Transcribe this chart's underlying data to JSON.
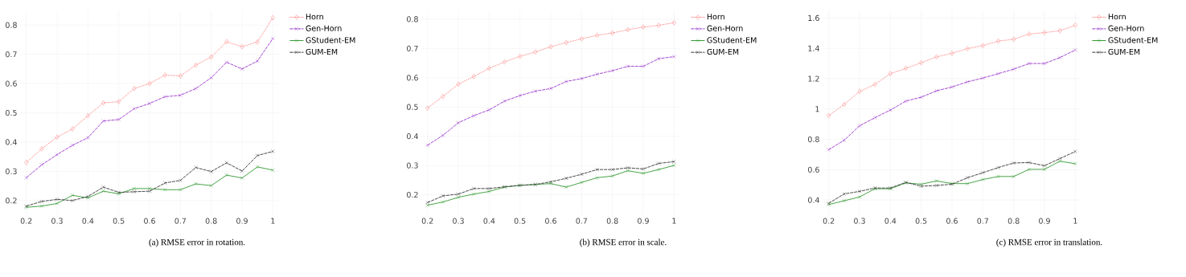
{
  "chart_data": [
    {
      "type": "line",
      "title": "(a) RMSE error in rotation.",
      "x": [
        0.2,
        0.25,
        0.3,
        0.35,
        0.4,
        0.45,
        0.5,
        0.55,
        0.6,
        0.65,
        0.7,
        0.75,
        0.8,
        0.85,
        0.9,
        0.95,
        1
      ],
      "xlim": [
        0.18,
        1.02
      ],
      "ylim": [
        0.15,
        0.85
      ],
      "xticks": [
        0.2,
        0.3,
        0.4,
        0.5,
        0.6,
        0.7,
        0.8,
        0.9,
        1
      ],
      "yticks": [
        0.2,
        0.3,
        0.4,
        0.5,
        0.6,
        0.7,
        0.8
      ],
      "grid": true,
      "legend": "top right",
      "series": [
        {
          "name": "Horn",
          "color": "#ff6666",
          "marker": "diamond",
          "line_style": "dotted",
          "values": [
            0.33,
            0.377,
            0.417,
            0.445,
            0.49,
            0.534,
            0.538,
            0.583,
            0.6,
            0.629,
            0.626,
            0.663,
            0.691,
            0.743,
            0.726,
            0.742,
            0.825
          ]
        },
        {
          "name": "Gen-Horn",
          "color": "#9933cc",
          "marker": "cross",
          "line_style": "dashed",
          "values": [
            0.278,
            0.322,
            0.357,
            0.389,
            0.415,
            0.472,
            0.477,
            0.514,
            0.532,
            0.555,
            0.56,
            0.583,
            0.62,
            0.673,
            0.65,
            0.677,
            0.754
          ]
        },
        {
          "name": "GStudent-EM",
          "color": "#339933",
          "marker": "cross",
          "line_style": "solid",
          "values": [
            0.177,
            0.181,
            0.19,
            0.218,
            0.209,
            0.232,
            0.223,
            0.241,
            0.241,
            0.237,
            0.237,
            0.257,
            0.251,
            0.287,
            0.277,
            0.315,
            0.304
          ]
        },
        {
          "name": "GUM-EM",
          "color": "#333333",
          "marker": "cross",
          "line_style": "dashed",
          "values": [
            0.181,
            0.197,
            0.204,
            0.2,
            0.214,
            0.246,
            0.228,
            0.23,
            0.232,
            0.26,
            0.269,
            0.313,
            0.299,
            0.329,
            0.301,
            0.354,
            0.368
          ]
        }
      ]
    },
    {
      "type": "line",
      "title": "(b) RMSE error in scale.",
      "x": [
        0.2,
        0.25,
        0.3,
        0.35,
        0.4,
        0.45,
        0.5,
        0.55,
        0.6,
        0.65,
        0.7,
        0.75,
        0.8,
        0.85,
        0.9,
        0.95,
        1
      ],
      "xlim": [
        0.18,
        1.02
      ],
      "ylim": [
        0.13,
        0.83
      ],
      "xticks": [
        0.2,
        0.3,
        0.4,
        0.5,
        0.6,
        0.7,
        0.8,
        0.9,
        1
      ],
      "yticks": [
        0.2,
        0.3,
        0.4,
        0.5,
        0.6,
        0.7,
        0.8
      ],
      "grid": true,
      "legend": "top right",
      "series": [
        {
          "name": "Horn",
          "color": "#ff6666",
          "marker": "diamond",
          "line_style": "dotted",
          "values": [
            0.496,
            0.536,
            0.578,
            0.604,
            0.632,
            0.654,
            0.673,
            0.688,
            0.706,
            0.72,
            0.733,
            0.745,
            0.753,
            0.764,
            0.773,
            0.779,
            0.788
          ]
        },
        {
          "name": "Gen-Horn",
          "color": "#9933cc",
          "marker": "cross",
          "line_style": "dashed",
          "values": [
            0.369,
            0.403,
            0.446,
            0.47,
            0.49,
            0.52,
            0.539,
            0.554,
            0.563,
            0.587,
            0.597,
            0.612,
            0.624,
            0.639,
            0.639,
            0.665,
            0.672
          ]
        },
        {
          "name": "GStudent-EM",
          "color": "#339933",
          "marker": "cross",
          "line_style": "solid",
          "values": [
            0.164,
            0.175,
            0.191,
            0.202,
            0.211,
            0.226,
            0.232,
            0.235,
            0.238,
            0.226,
            0.242,
            0.258,
            0.264,
            0.282,
            0.273,
            0.286,
            0.3
          ]
        },
        {
          "name": "GUM-EM",
          "color": "#333333",
          "marker": "cross",
          "line_style": "dashed",
          "values": [
            0.173,
            0.196,
            0.202,
            0.221,
            0.221,
            0.227,
            0.232,
            0.235,
            0.244,
            0.256,
            0.27,
            0.286,
            0.286,
            0.292,
            0.288,
            0.307,
            0.313
          ]
        }
      ]
    },
    {
      "type": "line",
      "title": "(c) RMSE error in translation.",
      "x": [
        0.2,
        0.25,
        0.3,
        0.35,
        0.4,
        0.45,
        0.5,
        0.55,
        0.6,
        0.65,
        0.7,
        0.75,
        0.8,
        0.85,
        0.9,
        0.95,
        1
      ],
      "xlim": [
        0.18,
        1.02
      ],
      "ylim": [
        0.3,
        1.65
      ],
      "xticks": [
        0.2,
        0.3,
        0.4,
        0.5,
        0.6,
        0.7,
        0.8,
        0.9,
        1
      ],
      "yticks": [
        0.4,
        0.6,
        0.8,
        1,
        1.2,
        1.4,
        1.6
      ],
      "grid": true,
      "legend": "top right",
      "series": [
        {
          "name": "Horn",
          "color": "#ff6666",
          "marker": "diamond",
          "line_style": "dotted",
          "values": [
            0.956,
            1.03,
            1.116,
            1.162,
            1.233,
            1.268,
            1.305,
            1.344,
            1.367,
            1.398,
            1.418,
            1.448,
            1.46,
            1.494,
            1.504,
            1.516,
            1.553
          ]
        },
        {
          "name": "Gen-Horn",
          "color": "#9933cc",
          "marker": "cross",
          "line_style": "dashed",
          "values": [
            0.732,
            0.794,
            0.889,
            0.943,
            0.993,
            1.052,
            1.078,
            1.12,
            1.145,
            1.179,
            1.204,
            1.233,
            1.263,
            1.3,
            1.3,
            1.339,
            1.389
          ]
        },
        {
          "name": "GStudent-EM",
          "color": "#339933",
          "marker": "cross",
          "line_style": "solid",
          "values": [
            0.37,
            0.395,
            0.42,
            0.474,
            0.474,
            0.513,
            0.504,
            0.526,
            0.508,
            0.508,
            0.535,
            0.555,
            0.555,
            0.602,
            0.602,
            0.656,
            0.639
          ]
        },
        {
          "name": "GUM-EM",
          "color": "#333333",
          "marker": "cross",
          "line_style": "dashed",
          "values": [
            0.378,
            0.44,
            0.457,
            0.479,
            0.479,
            0.516,
            0.491,
            0.496,
            0.504,
            0.547,
            0.58,
            0.614,
            0.644,
            0.647,
            0.626,
            0.673,
            0.72
          ]
        }
      ]
    }
  ]
}
